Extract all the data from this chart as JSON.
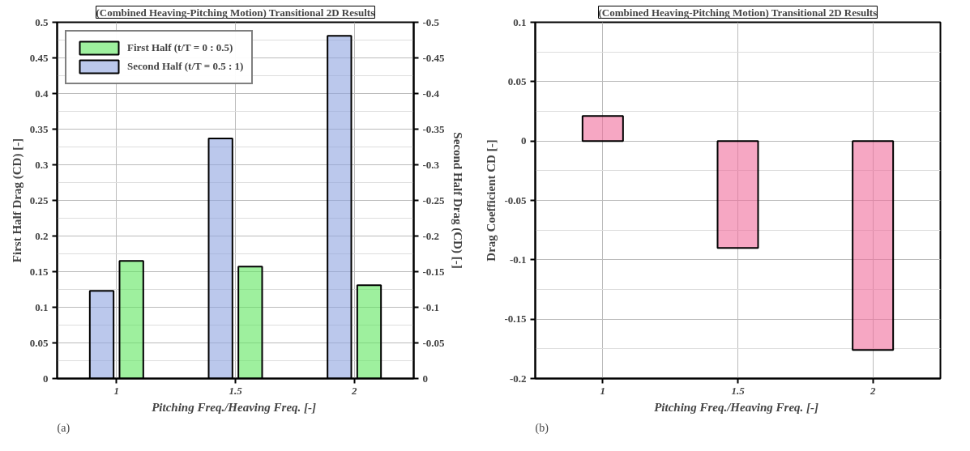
{
  "chart_data": [
    {
      "type": "bar",
      "title": "(Combined Heaving-Pitching Motion) Transitional 2D Results",
      "xlabel": "Pitching Freq./Heaving Freq.  [-]",
      "ylabel": "First Half Drag (CD) [-]",
      "y2label": "Second Half Drag (CD) [-]",
      "categories": [
        "1",
        "1.5",
        "2"
      ],
      "series": [
        {
          "name": "First Half (t/T = 0 : 0.5)",
          "color": "#5ee65e",
          "values": [
            0.165,
            0.157,
            0.131
          ]
        },
        {
          "name": "Second Half (t/T = 0.5 : 1)",
          "color": "#8ea3e0",
          "axis": "y2",
          "values": [
            -0.123,
            -0.337,
            -0.481
          ]
        }
      ],
      "ylim": [
        0,
        0.5
      ],
      "yticks": [
        0,
        0.05,
        0.1,
        0.15,
        0.2,
        0.25,
        0.3,
        0.35,
        0.4,
        0.45,
        0.5
      ],
      "y2lim": [
        0,
        -0.5
      ],
      "y2ticks": [
        0,
        -0.05,
        -0.1,
        -0.15,
        -0.2,
        -0.25,
        -0.3,
        -0.35,
        -0.4,
        -0.45,
        -0.5
      ],
      "grid": true,
      "legend": "top left",
      "annotations": [
        "(a)"
      ]
    },
    {
      "type": "bar",
      "title": "(Combined Heaving-Pitching Motion) Transitional 2D Results",
      "xlabel": "Pitching Freq./Heaving Freq.  [-]",
      "ylabel": "Drag Coefficient CD [-]",
      "categories": [
        "1",
        "1.5",
        "2"
      ],
      "series": [
        {
          "color": "#f06c9b",
          "values": [
            0.021,
            -0.09,
            -0.176
          ]
        }
      ],
      "ylim": [
        -0.2,
        0.1
      ],
      "yticks": [
        -0.2,
        -0.15,
        -0.1,
        -0.05,
        0,
        0.05,
        0.1
      ],
      "grid": true,
      "annotations": [
        "(b)"
      ]
    }
  ]
}
